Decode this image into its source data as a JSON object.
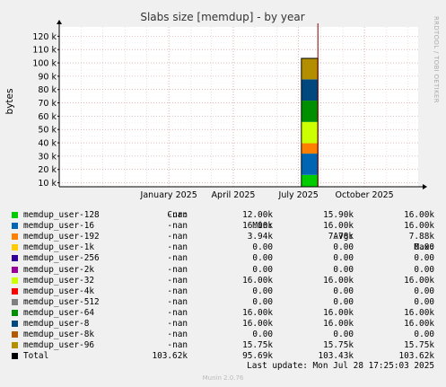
{
  "chart_data": {
    "type": "bar",
    "stacked": true,
    "title": "Slabs size [memdup] - by year",
    "ylabel": "bytes",
    "y_ticks": [
      "10 k",
      "20 k",
      "30 k",
      "40 k",
      "50 k",
      "60 k",
      "70 k",
      "80 k",
      "90 k",
      "100 k",
      "110 k",
      "120 k"
    ],
    "y_tick_values": [
      10000,
      20000,
      30000,
      40000,
      50000,
      60000,
      70000,
      80000,
      90000,
      100000,
      110000,
      120000
    ],
    "ylim": [
      7000,
      127000
    ],
    "x_ticks": [
      "January 2025",
      "April 2025",
      "July 2025",
      "October 2025"
    ],
    "x_tick_dates": [
      "2025-01-01",
      "2025-04-01",
      "2025-07-01",
      "2025-10-01"
    ],
    "xlim": [
      "2024-08-01",
      "2025-12-15"
    ],
    "bar_range": [
      "2025-07-05",
      "2025-07-28"
    ],
    "now_marker": "2025-07-28",
    "grid": true,
    "side_label": "RRDTOOL / TOBI OETIKER",
    "columns": {
      "cur": "Cur:",
      "min": "Min:",
      "avg": "Avg:",
      "max": "Max:"
    },
    "series": [
      {
        "name": "memdup_user-128",
        "color": "#00cc00",
        "value": 15900,
        "cur": "-nan",
        "min": "12.00k",
        "avg": "15.90k",
        "max": "16.00k"
      },
      {
        "name": "memdup_user-16",
        "color": "#0066b3",
        "value": 16000,
        "cur": "-nan",
        "min": "16.00k",
        "avg": "16.00k",
        "max": "16.00k"
      },
      {
        "name": "memdup_user-192",
        "color": "#ff8000",
        "value": 7780,
        "cur": "-nan",
        "min": "3.94k",
        "avg": "7.78k",
        "max": "7.88k"
      },
      {
        "name": "memdup_user-1k",
        "color": "#ffcc00",
        "value": 0,
        "cur": "-nan",
        "min": "0.00",
        "avg": "0.00",
        "max": "0.00"
      },
      {
        "name": "memdup_user-256",
        "color": "#330099",
        "value": 0,
        "cur": "-nan",
        "min": "0.00",
        "avg": "0.00",
        "max": "0.00"
      },
      {
        "name": "memdup_user-2k",
        "color": "#990099",
        "value": 0,
        "cur": "-nan",
        "min": "0.00",
        "avg": "0.00",
        "max": "0.00"
      },
      {
        "name": "memdup_user-32",
        "color": "#ccff00",
        "value": 16000,
        "cur": "-nan",
        "min": "16.00k",
        "avg": "16.00k",
        "max": "16.00k"
      },
      {
        "name": "memdup_user-4k",
        "color": "#ff0000",
        "value": 0,
        "cur": "-nan",
        "min": "0.00",
        "avg": "0.00",
        "max": "0.00"
      },
      {
        "name": "memdup_user-512",
        "color": "#808080",
        "value": 0,
        "cur": "-nan",
        "min": "0.00",
        "avg": "0.00",
        "max": "0.00"
      },
      {
        "name": "memdup_user-64",
        "color": "#008f00",
        "value": 16000,
        "cur": "-nan",
        "min": "16.00k",
        "avg": "16.00k",
        "max": "16.00k"
      },
      {
        "name": "memdup_user-8",
        "color": "#00487d",
        "value": 16000,
        "cur": "-nan",
        "min": "16.00k",
        "avg": "16.00k",
        "max": "16.00k"
      },
      {
        "name": "memdup_user-8k",
        "color": "#b35a00",
        "value": 0,
        "cur": "-nan",
        "min": "0.00",
        "avg": "0.00",
        "max": "0.00"
      },
      {
        "name": "memdup_user-96",
        "color": "#b38f00",
        "value": 15750,
        "cur": "-nan",
        "min": "15.75k",
        "avg": "15.75k",
        "max": "15.75k"
      }
    ],
    "total": {
      "name": "Total",
      "color": "#000000",
      "value": 103430,
      "cur": "103.62k",
      "min": "95.69k",
      "avg": "103.43k",
      "max": "103.62k"
    }
  },
  "footer": {
    "last_update": "Last update: Mon Jul 28 17:25:03 2025",
    "version": "Munin 2.0.76"
  }
}
